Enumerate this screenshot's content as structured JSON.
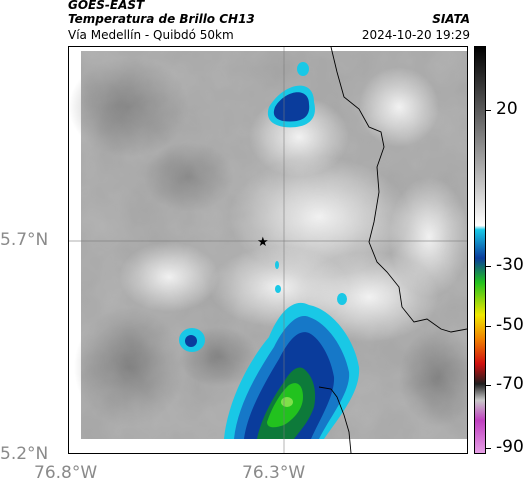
{
  "header": {
    "satellite": "GOES-EAST",
    "product": "Temperatura de Brillo CH13",
    "route": "Vía Medellín - Quibdó 50km",
    "org": "SIATA",
    "datetime": "2024-10-20 19:29"
  },
  "axes": {
    "lat_labels": [
      "5.7°N",
      "5.2°N"
    ],
    "lon_labels": [
      "76.8°W",
      "76.3°W"
    ]
  },
  "colorbar": {
    "labels": [
      "20",
      "-30",
      "-50",
      "-70",
      "-90"
    ]
  },
  "colors": {
    "cloud_gray": "#9a9a9a",
    "cyan": "#19c8e6",
    "blue": "#0a3c9c",
    "green": "#22c21e",
    "yellow": "#f0e800",
    "red": "#d01010",
    "magenta": "#c040c0"
  }
}
